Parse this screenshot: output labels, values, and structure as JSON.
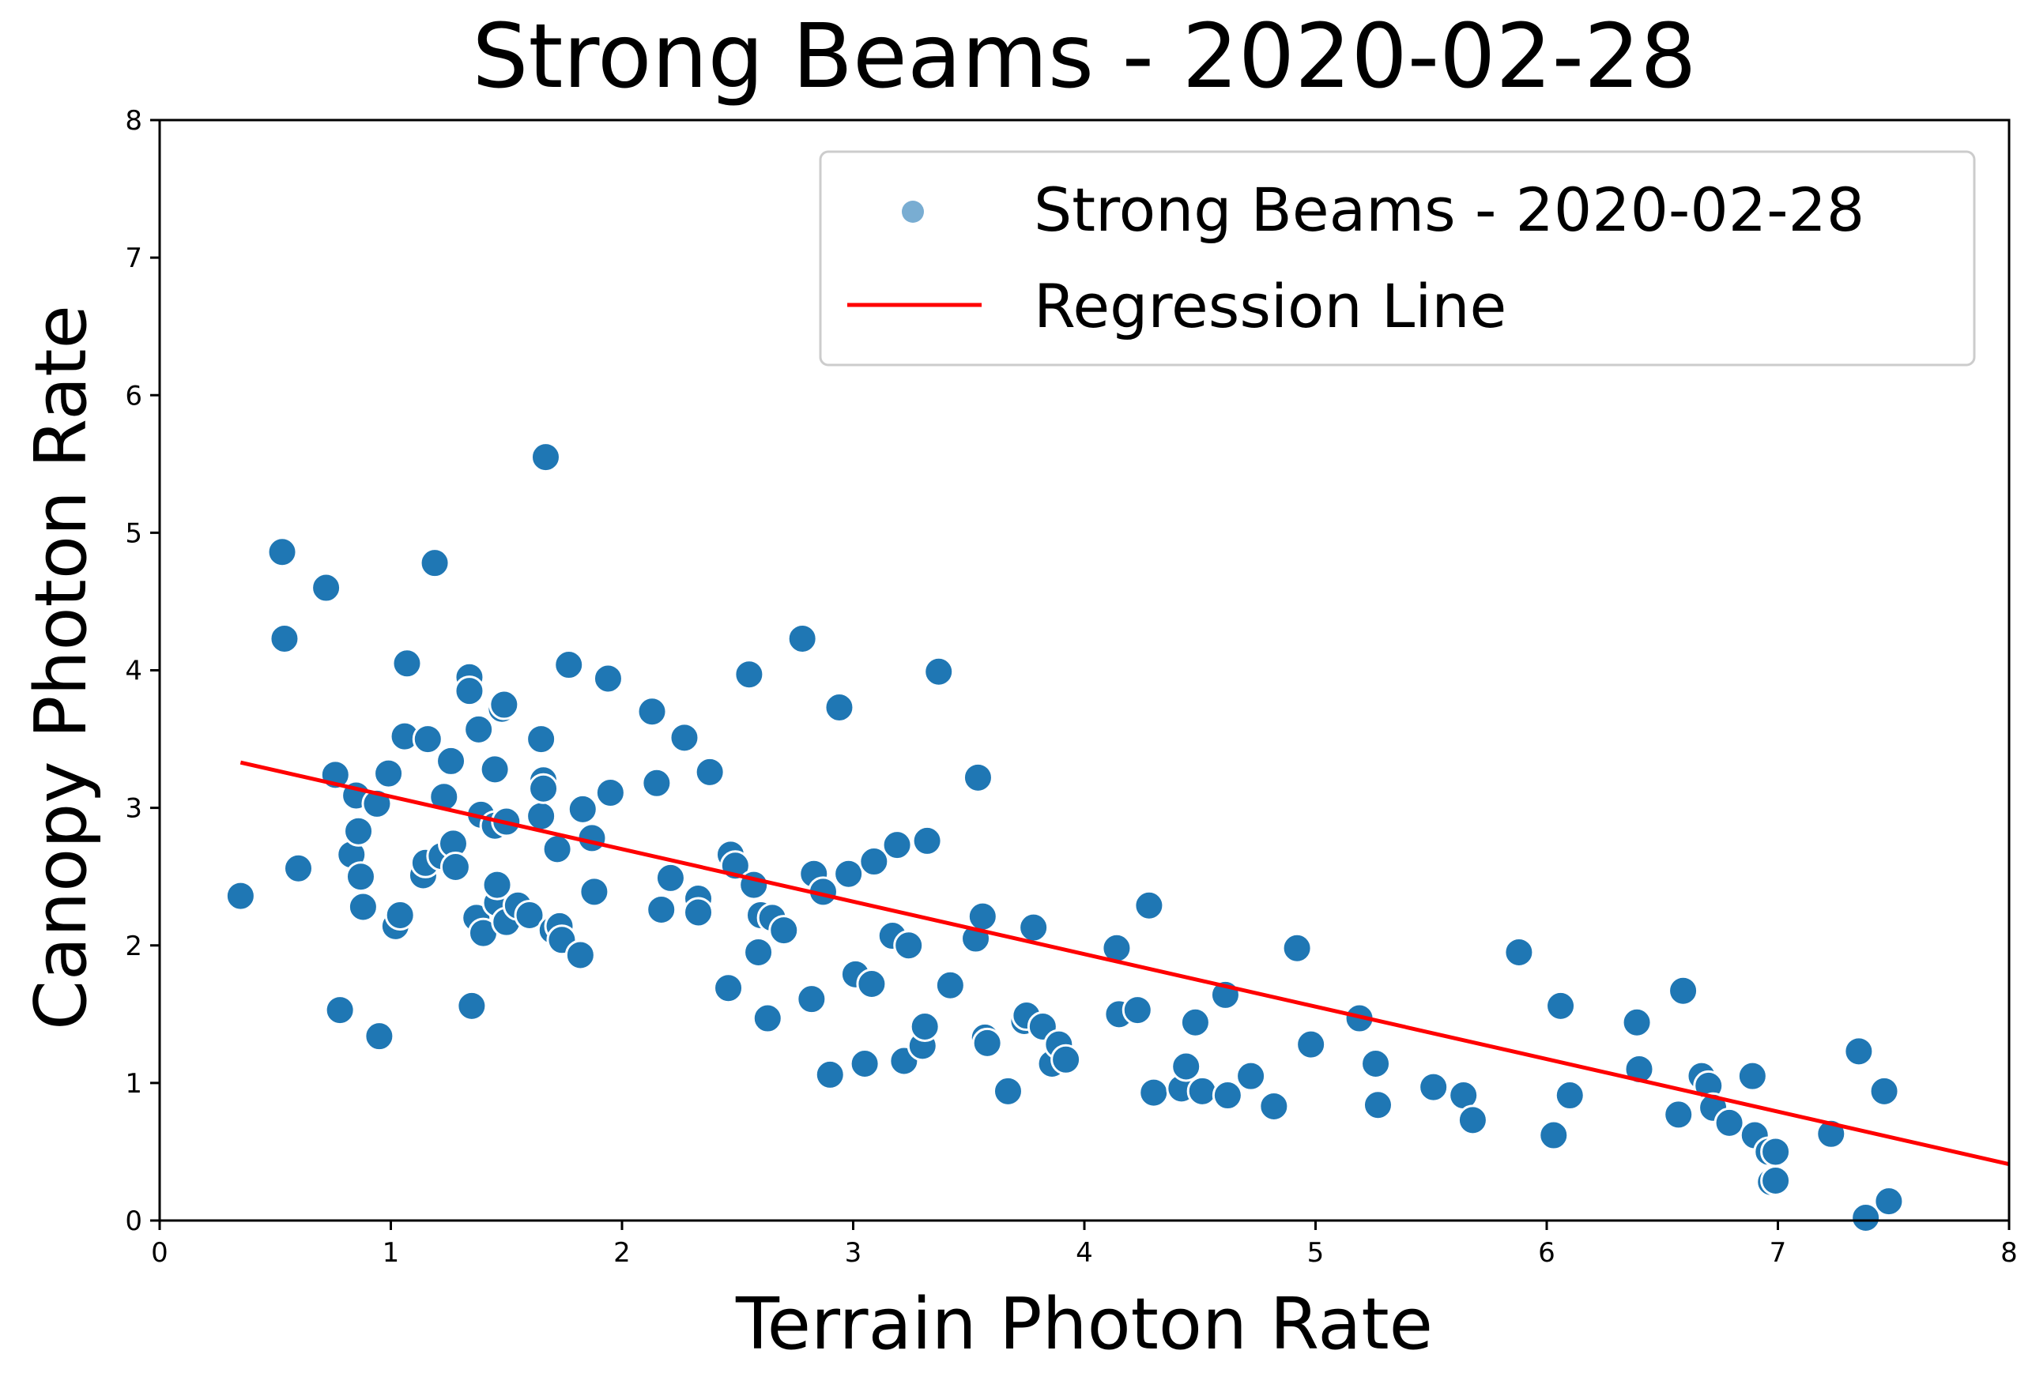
{
  "chart_data": {
    "type": "scatter",
    "title": "Strong Beams - 2020-02-28",
    "xlabel": "Terrain Photon Rate",
    "ylabel": "Canopy Photon Rate",
    "xlim": [
      0,
      8
    ],
    "ylim": [
      0,
      8
    ],
    "xticks": [
      0,
      1,
      2,
      3,
      4,
      5,
      6,
      7,
      8
    ],
    "yticks": [
      0,
      1,
      2,
      3,
      4,
      5,
      6,
      7,
      8
    ],
    "legend_position": "top-right",
    "grid": false,
    "series": [
      {
        "name": "Strong Beams - 2020-02-28",
        "kind": "scatter",
        "color": "#1f77b4",
        "points": [
          [
            0.35,
            2.36
          ],
          [
            0.53,
            4.86
          ],
          [
            0.54,
            4.23
          ],
          [
            0.6,
            2.56
          ],
          [
            0.72,
            4.6
          ],
          [
            0.76,
            3.24
          ],
          [
            0.78,
            1.53
          ],
          [
            0.83,
            2.66
          ],
          [
            0.85,
            3.09
          ],
          [
            0.86,
            2.83
          ],
          [
            0.87,
            2.5
          ],
          [
            0.88,
            2.28
          ],
          [
            0.94,
            3.03
          ],
          [
            0.95,
            1.34
          ],
          [
            0.99,
            3.25
          ],
          [
            1.02,
            2.14
          ],
          [
            1.04,
            2.22
          ],
          [
            1.06,
            3.52
          ],
          [
            1.07,
            4.05
          ],
          [
            1.14,
            2.51
          ],
          [
            1.15,
            2.6
          ],
          [
            1.16,
            3.5
          ],
          [
            1.19,
            4.78
          ],
          [
            1.22,
            2.65
          ],
          [
            1.23,
            3.08
          ],
          [
            1.26,
            3.34
          ],
          [
            1.27,
            2.74
          ],
          [
            1.28,
            2.57
          ],
          [
            1.34,
            3.95
          ],
          [
            1.34,
            3.85
          ],
          [
            1.35,
            1.56
          ],
          [
            1.37,
            2.2
          ],
          [
            1.38,
            3.57
          ],
          [
            1.39,
            2.95
          ],
          [
            1.4,
            2.09
          ],
          [
            1.45,
            2.87
          ],
          [
            1.45,
            3.28
          ],
          [
            1.46,
            2.31
          ],
          [
            1.46,
            2.44
          ],
          [
            1.48,
            3.72
          ],
          [
            1.49,
            3.75
          ],
          [
            1.5,
            2.17
          ],
          [
            1.5,
            2.9
          ],
          [
            1.55,
            2.29
          ],
          [
            1.6,
            2.22
          ],
          [
            1.65,
            3.5
          ],
          [
            1.65,
            2.94
          ],
          [
            1.66,
            3.2
          ],
          [
            1.66,
            3.14
          ],
          [
            1.67,
            5.55
          ],
          [
            1.7,
            2.11
          ],
          [
            1.72,
            2.7
          ],
          [
            1.73,
            2.14
          ],
          [
            1.74,
            2.04
          ],
          [
            1.77,
            4.04
          ],
          [
            1.82,
            1.93
          ],
          [
            1.83,
            2.99
          ],
          [
            1.87,
            2.78
          ],
          [
            1.88,
            2.39
          ],
          [
            1.94,
            3.94
          ],
          [
            1.95,
            3.11
          ],
          [
            2.13,
            3.7
          ],
          [
            2.15,
            3.18
          ],
          [
            2.17,
            2.26
          ],
          [
            2.21,
            2.49
          ],
          [
            2.27,
            3.51
          ],
          [
            2.33,
            2.34
          ],
          [
            2.33,
            2.24
          ],
          [
            2.38,
            3.26
          ],
          [
            2.46,
            1.69
          ],
          [
            2.47,
            2.66
          ],
          [
            2.49,
            2.58
          ],
          [
            2.55,
            3.97
          ],
          [
            2.57,
            2.44
          ],
          [
            2.59,
            1.95
          ],
          [
            2.6,
            2.22
          ],
          [
            2.63,
            1.47
          ],
          [
            2.65,
            2.2
          ],
          [
            2.7,
            2.11
          ],
          [
            2.78,
            4.23
          ],
          [
            2.82,
            1.61
          ],
          [
            2.83,
            2.52
          ],
          [
            2.87,
            2.39
          ],
          [
            2.9,
            1.06
          ],
          [
            2.94,
            3.73
          ],
          [
            2.98,
            2.52
          ],
          [
            3.01,
            1.79
          ],
          [
            3.05,
            1.14
          ],
          [
            3.08,
            1.72
          ],
          [
            3.09,
            2.61
          ],
          [
            3.17,
            2.07
          ],
          [
            3.19,
            2.73
          ],
          [
            3.22,
            1.16
          ],
          [
            3.24,
            2.0
          ],
          [
            3.3,
            1.27
          ],
          [
            3.31,
            1.41
          ],
          [
            3.32,
            2.76
          ],
          [
            3.37,
            3.99
          ],
          [
            3.42,
            1.71
          ],
          [
            3.53,
            2.05
          ],
          [
            3.54,
            3.22
          ],
          [
            3.56,
            2.21
          ],
          [
            3.57,
            1.33
          ],
          [
            3.58,
            1.29
          ],
          [
            3.67,
            0.94
          ],
          [
            3.74,
            1.45
          ],
          [
            3.75,
            1.49
          ],
          [
            3.78,
            2.13
          ],
          [
            3.82,
            1.41
          ],
          [
            3.86,
            1.14
          ],
          [
            3.89,
            1.28
          ],
          [
            3.92,
            1.17
          ],
          [
            4.14,
            1.98
          ],
          [
            4.15,
            1.5
          ],
          [
            4.23,
            1.53
          ],
          [
            4.28,
            2.29
          ],
          [
            4.3,
            0.93
          ],
          [
            4.42,
            0.96
          ],
          [
            4.44,
            1.12
          ],
          [
            4.48,
            1.44
          ],
          [
            4.51,
            0.94
          ],
          [
            4.61,
            1.64
          ],
          [
            4.62,
            0.91
          ],
          [
            4.72,
            1.05
          ],
          [
            4.82,
            0.83
          ],
          [
            4.92,
            1.98
          ],
          [
            4.98,
            1.28
          ],
          [
            5.19,
            1.47
          ],
          [
            5.26,
            1.14
          ],
          [
            5.27,
            0.84
          ],
          [
            5.51,
            0.97
          ],
          [
            5.64,
            0.91
          ],
          [
            5.68,
            0.73
          ],
          [
            5.88,
            1.95
          ],
          [
            6.03,
            0.62
          ],
          [
            6.06,
            1.56
          ],
          [
            6.1,
            0.91
          ],
          [
            6.39,
            1.44
          ],
          [
            6.4,
            1.1
          ],
          [
            6.57,
            0.77
          ],
          [
            6.59,
            1.67
          ],
          [
            6.67,
            1.05
          ],
          [
            6.7,
            0.98
          ],
          [
            6.72,
            0.82
          ],
          [
            6.79,
            0.71
          ],
          [
            6.89,
            1.05
          ],
          [
            6.9,
            0.62
          ],
          [
            6.96,
            0.5
          ],
          [
            6.97,
            0.28
          ],
          [
            6.99,
            0.29
          ],
          [
            6.99,
            0.5
          ],
          [
            7.23,
            0.63
          ],
          [
            7.35,
            1.23
          ],
          [
            7.38,
            0.02
          ],
          [
            7.46,
            0.94
          ],
          [
            7.48,
            0.14
          ]
        ]
      },
      {
        "name": "Regression Line",
        "kind": "line",
        "color": "#ff0000",
        "x": [
          0.35,
          8.0
        ],
        "y": [
          3.33,
          0.41
        ]
      }
    ]
  }
}
